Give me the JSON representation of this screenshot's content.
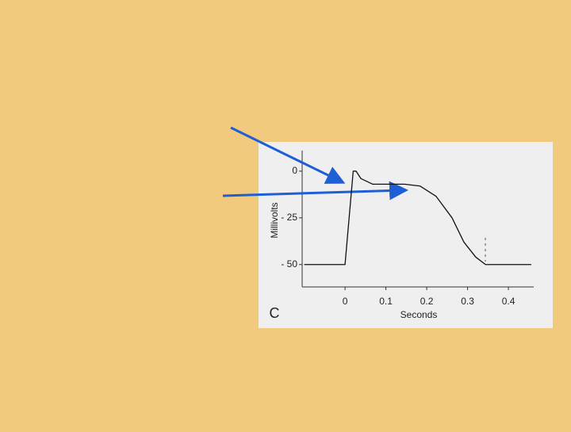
{
  "chart_data": {
    "type": "line",
    "panel_label": "C",
    "x_label": "Seconds",
    "y_label": "Millivolts",
    "x": [
      -0.1,
      0,
      0.012,
      0.02,
      0.027,
      0.039,
      0.068,
      0.146,
      0.184,
      0.223,
      0.262,
      0.291,
      0.32,
      0.344,
      0.456
    ],
    "series": [
      {
        "color": "#111111",
        "values": [
          -50,
          -50,
          -20,
          0,
          0,
          -4,
          -7,
          -7,
          -8,
          -13.5,
          -25,
          -38,
          -46,
          -50,
          -50
        ]
      }
    ],
    "xlim": [
      -0.105,
      0.462
    ],
    "xticks": [
      0,
      0.1,
      0.2,
      0.3,
      0.4
    ],
    "ylim": [
      -62,
      11
    ],
    "yticks": [
      {
        "value": -50,
        "label": "- 50"
      },
      {
        "value": -25,
        "label": "- 25"
      },
      0
    ]
  }
}
